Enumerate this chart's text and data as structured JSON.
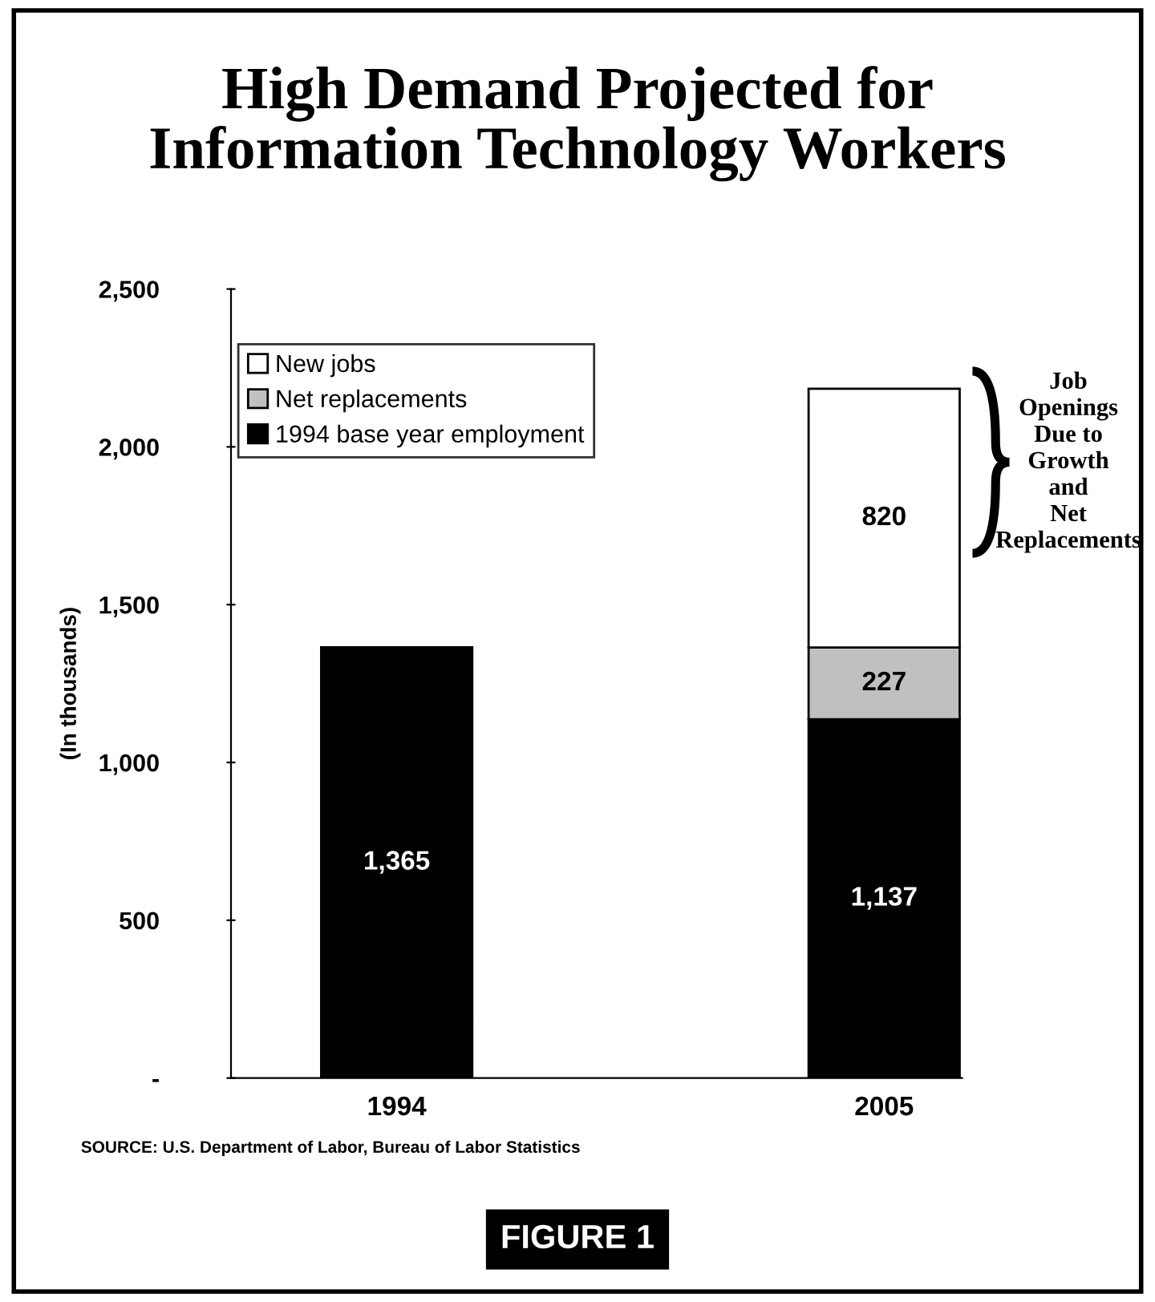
{
  "chart_data": {
    "type": "bar",
    "stacked": true,
    "title": "High Demand Projected for\nInformation Technology Workers",
    "ylabel": "(In thousands)",
    "categories": [
      "1994",
      "2005"
    ],
    "series": [
      {
        "name": "1994 base year employment",
        "color": "#000000",
        "values": [
          1365,
          1137
        ],
        "value_labels": [
          "1,365",
          "1,137"
        ]
      },
      {
        "name": "Net replacements",
        "color": "#c0c0c0",
        "values": [
          null,
          227
        ],
        "value_labels": [
          null,
          "227"
        ]
      },
      {
        "name": "New jobs",
        "color": "#ffffff",
        "values": [
          null,
          820
        ],
        "value_labels": [
          null,
          "820"
        ]
      }
    ],
    "ylim": [
      0,
      2500
    ],
    "yticks": [
      {
        "value": 0,
        "label": "-"
      },
      {
        "value": 500,
        "label": "500"
      },
      {
        "value": 1000,
        "label": "1,000"
      },
      {
        "value": 1500,
        "label": "1,500"
      },
      {
        "value": 2000,
        "label": "2,000"
      },
      {
        "value": 2500,
        "label": "2,500"
      }
    ],
    "legend": "top left",
    "grid": false,
    "annotations": [
      "Job\nOpenings\nDue to\nGrowth\nand\nNet\nReplacements",
      "SOURCE: U.S. Department of Labor, Bureau of Labor Statistics",
      "FIGURE 1"
    ]
  }
}
